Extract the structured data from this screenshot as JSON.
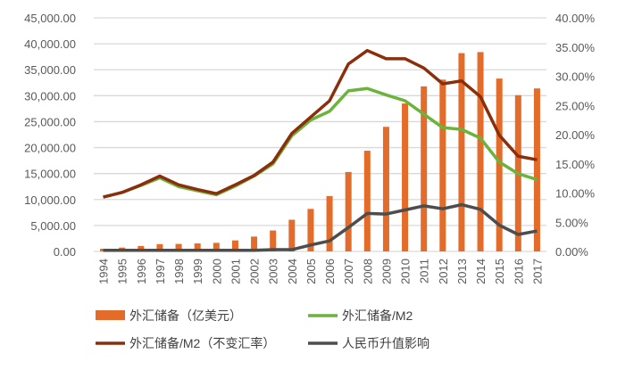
{
  "chart_data": {
    "type": "bar+line",
    "categories": [
      "1994",
      "1995",
      "1996",
      "1997",
      "1998",
      "1999",
      "2000",
      "2001",
      "2002",
      "2003",
      "2004",
      "2005",
      "2006",
      "2007",
      "2008",
      "2009",
      "2010",
      "2011",
      "2012",
      "2013",
      "2014",
      "2015",
      "2016",
      "2017"
    ],
    "left_axis": {
      "ylim": [
        0,
        45000
      ],
      "ticks": [
        "0.00",
        "5,000.00",
        "10,000.00",
        "15,000.00",
        "20,000.00",
        "25,000.00",
        "30,000.00",
        "35,000.00",
        "40,000.00",
        "45,000.00"
      ]
    },
    "right_axis": {
      "ylim": [
        0,
        40
      ],
      "unit": "%",
      "ticks": [
        "0.00%",
        "5.00%",
        "10.00%",
        "15.00%",
        "20.00%",
        "25.00%",
        "30.00%",
        "35.00%",
        "40.00%"
      ]
    },
    "grid": true,
    "legend_position": "bottom",
    "series": [
      {
        "name": "外汇储备（亿美元）",
        "type": "bar",
        "axis": "left",
        "color": "#E46C2B",
        "values": [
          520,
          740,
          1050,
          1400,
          1450,
          1550,
          1650,
          2120,
          2860,
          4030,
          6100,
          8190,
          10660,
          15300,
          19400,
          24000,
          28500,
          31800,
          33100,
          38200,
          38400,
          33300,
          30100,
          31400
        ]
      },
      {
        "name": "外汇储备/M2",
        "type": "line",
        "axis": "right",
        "color": "#6BB33A",
        "values": [
          9.3,
          10.1,
          11.3,
          12.6,
          11.1,
          10.4,
          9.7,
          11.2,
          12.9,
          15.0,
          19.8,
          22.5,
          24.0,
          27.5,
          27.9,
          26.8,
          25.8,
          23.5,
          21.2,
          20.9,
          19.4,
          15.3,
          13.3,
          12.3
        ]
      },
      {
        "name": "外汇储备/M2（不变汇率）",
        "type": "line",
        "axis": "right",
        "color": "#8B2E0B",
        "values": [
          9.3,
          10.1,
          11.4,
          12.9,
          11.4,
          10.6,
          9.9,
          11.4,
          13.0,
          15.3,
          20.2,
          23.0,
          25.8,
          32.1,
          34.4,
          33.0,
          33.0,
          31.4,
          28.7,
          29.2,
          26.5,
          19.9,
          16.3,
          15.7
        ]
      },
      {
        "name": "人民币升值影响",
        "type": "line",
        "axis": "right",
        "color": "#4D4D4D",
        "values": [
          0.2,
          0.2,
          0.2,
          0.2,
          0.2,
          0.2,
          0.2,
          0.2,
          0.2,
          0.3,
          0.3,
          1.1,
          1.8,
          4.1,
          6.5,
          6.4,
          7.1,
          7.8,
          7.3,
          8.0,
          7.2,
          4.5,
          2.9,
          3.5
        ]
      }
    ]
  }
}
